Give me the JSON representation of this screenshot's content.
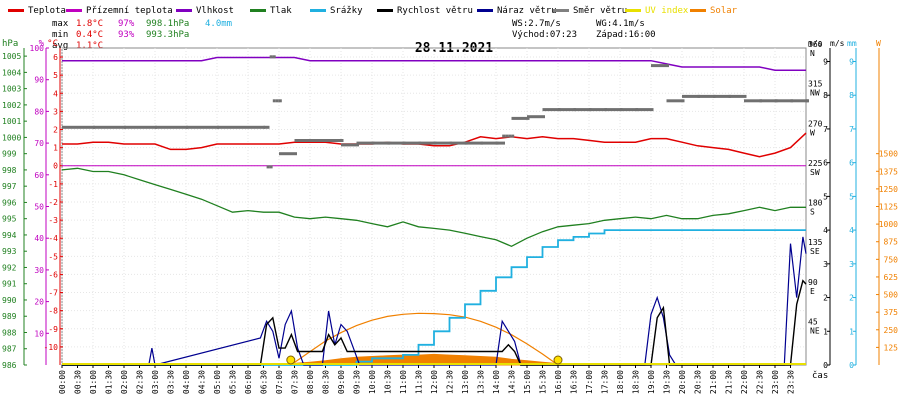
{
  "chart_data": {
    "type": "line",
    "title": "28.11.2021",
    "xlabel": "čas",
    "x_ticks": [
      "00:00",
      "00:30",
      "01:00",
      "01:30",
      "02:00",
      "02:30",
      "03:00",
      "03:30",
      "04:00",
      "04:30",
      "05:00",
      "05:30",
      "06:00",
      "06:30",
      "07:00",
      "07:30",
      "08:00",
      "08:30",
      "09:00",
      "09:30",
      "10:00",
      "10:30",
      "11:00",
      "11:30",
      "12:00",
      "12:30",
      "13:00",
      "13:30",
      "14:00",
      "14:30",
      "15:00",
      "15:30",
      "16:00",
      "16:30",
      "17:00",
      "17:30",
      "18:00",
      "18:30",
      "19:00",
      "19:30",
      "20:00",
      "20:30",
      "21:00",
      "21:30",
      "22:00",
      "22:30",
      "23:00",
      "23:30"
    ],
    "legend": [
      {
        "label": "Teplota",
        "color": "#e00000"
      },
      {
        "label": "Přízemní teplota",
        "color": "#c000c0"
      },
      {
        "label": "Vlhkost",
        "color": "#8000c0"
      },
      {
        "label": "Tlak",
        "color": "#208020"
      },
      {
        "label": "Srážky",
        "color": "#20b0e0"
      },
      {
        "label": "Rychlost větru",
        "color": "#000000"
      },
      {
        "label": "Náraz větru",
        "color": "#000090"
      },
      {
        "label": "Směr větru",
        "color": "#808080"
      },
      {
        "label": "UV index",
        "color": "#e8e000"
      },
      {
        "label": "Solar",
        "color": "#f08000"
      }
    ],
    "stats": {
      "max_label": "max",
      "min_label": "min",
      "avg_label": "avg",
      "max_temp": "1.8°C",
      "max_hum": "97%",
      "max_press": "998.1hPa",
      "max_rain": "4.0mm",
      "min_temp": "0.4°C",
      "min_hum": "93%",
      "min_press": "993.3hPa",
      "avg_temp": "1.1°C"
    },
    "info": {
      "ws": "WS:2.7m/s",
      "wg": "WG:4.1m/s",
      "sunrise": "Východ:07:23",
      "sunset": "Západ:16:00"
    },
    "axes": {
      "press": {
        "unit": "hPa",
        "color": "#208020",
        "ticks": [
          "1005",
          "1004",
          "1003",
          "1002",
          "1001",
          "1000",
          "999",
          "998",
          "997",
          "996",
          "995",
          "994",
          "993",
          "992",
          "991",
          "990",
          "989",
          "988",
          "987",
          "986"
        ],
        "range": [
          986,
          1005.5
        ]
      },
      "hum": {
        "unit": "%",
        "color": "#c000c0",
        "ticks": [
          "100",
          "90",
          "80",
          "70",
          "60",
          "50",
          "40",
          "30",
          "20",
          "10"
        ],
        "range": [
          0,
          100
        ]
      },
      "temp": {
        "unit": "°C",
        "color": "#e00000",
        "ticks": [
          "6",
          "5",
          "4",
          "3",
          "2",
          "1",
          "0",
          "-1",
          "-2",
          "-3",
          "-4",
          "-5",
          "-6",
          "-7",
          "-8",
          "-9",
          "-10"
        ],
        "range": [
          -11,
          6.5
        ]
      },
      "dir": {
        "unit": "m/s",
        "color": "#000000",
        "ticks": [
          "360",
          "315",
          "270",
          "225",
          "180",
          "135",
          "90",
          "45"
        ],
        "dir_labels": [
          "N",
          "NW",
          "W",
          "SW",
          "S",
          "SE",
          "E",
          "NE"
        ],
        "range": [
          0,
          360
        ]
      },
      "wind": {
        "unit": "m/s",
        "color": "#000000",
        "ticks": [
          "9",
          "8",
          "7",
          "6",
          "5",
          "4",
          "3",
          "2",
          "1",
          "0"
        ],
        "range": [
          0,
          9.4
        ]
      },
      "rain": {
        "unit": "mm",
        "color": "#20b0e0",
        "ticks": [
          "9",
          "8",
          "7",
          "6",
          "5",
          "4",
          "3",
          "2",
          "1",
          "0"
        ],
        "range": [
          0,
          9.4
        ]
      },
      "solar": {
        "unit": "W",
        "color": "#f08000",
        "ticks": [
          "1500",
          "1375",
          "1250",
          "1125",
          "1000",
          "875",
          "750",
          "625",
          "500",
          "375",
          "250",
          "125"
        ],
        "range": [
          0,
          2250
        ]
      }
    },
    "series": {
      "temperature": {
        "x": [
          0,
          0.5,
          1,
          1.5,
          2,
          2.5,
          3,
          3.5,
          4,
          4.5,
          5,
          5.5,
          6,
          6.5,
          7,
          7.5,
          8,
          8.5,
          9,
          9.5,
          10,
          10.5,
          11,
          11.5,
          12,
          12.5,
          13,
          13.5,
          14,
          14.5,
          15,
          15.5,
          16,
          16.5,
          17,
          17.5,
          18,
          18.5,
          19,
          19.5,
          20,
          20.5,
          21,
          21.5,
          22,
          22.5,
          23,
          23.5,
          24
        ],
        "y": [
          1.2,
          1.2,
          1.3,
          1.3,
          1.2,
          1.2,
          1.2,
          0.9,
          0.9,
          1.0,
          1.2,
          1.2,
          1.2,
          1.2,
          1.2,
          1.3,
          1.3,
          1.3,
          1.2,
          1.2,
          1.2,
          1.3,
          1.2,
          1.2,
          1.1,
          1.1,
          1.3,
          1.6,
          1.5,
          1.6,
          1.5,
          1.6,
          1.5,
          1.5,
          1.4,
          1.3,
          1.3,
          1.3,
          1.5,
          1.5,
          1.3,
          1.1,
          1.0,
          0.9,
          0.7,
          0.5,
          0.7,
          1.0,
          1.8
        ]
      },
      "humidity": {
        "x": [
          0,
          0.5,
          1,
          1.5,
          2,
          2.5,
          3,
          3.5,
          4,
          4.5,
          5,
          5.5,
          6,
          6.5,
          7,
          7.5,
          8,
          8.5,
          9,
          9.5,
          10,
          10.5,
          11,
          11.5,
          12,
          12.5,
          13,
          13.5,
          14,
          14.5,
          15,
          15.5,
          16,
          16.5,
          17,
          17.5,
          18,
          18.5,
          19,
          19.5,
          20,
          20.5,
          21,
          21.5,
          22,
          22.5,
          23,
          23.5,
          24
        ],
        "y": [
          96,
          96,
          96,
          96,
          96,
          96,
          96,
          96,
          96,
          96,
          97,
          97,
          97,
          97,
          97,
          97,
          96,
          96,
          96,
          96,
          96,
          96,
          96,
          96,
          96,
          96,
          96,
          96,
          96,
          96,
          96,
          96,
          96,
          96,
          96,
          96,
          96,
          96,
          96,
          95,
          94,
          94,
          94,
          94,
          94,
          94,
          93,
          93,
          93
        ]
      },
      "ground_temperature": {
        "x": [
          0,
          24
        ],
        "y": [
          0,
          0
        ]
      },
      "pressure": {
        "x": [
          0,
          0.5,
          1,
          1.5,
          2,
          2.5,
          3,
          3.5,
          4,
          4.5,
          5,
          5.5,
          6,
          6.5,
          7,
          7.5,
          8,
          8.5,
          9,
          9.5,
          10,
          10.5,
          11,
          11.5,
          12,
          12.5,
          13,
          13.5,
          14,
          14.5,
          15,
          15.5,
          16,
          16.5,
          17,
          17.5,
          18,
          18.5,
          19,
          19.5,
          20,
          20.5,
          21,
          21.5,
          22,
          22.5,
          23,
          23.5,
          24
        ],
        "y": [
          998.0,
          998.1,
          997.9,
          997.9,
          997.7,
          997.4,
          997.1,
          996.8,
          996.5,
          996.2,
          995.8,
          995.4,
          995.5,
          995.4,
          995.4,
          995.1,
          995.0,
          995.1,
          995.0,
          994.9,
          994.7,
          994.5,
          994.8,
          994.5,
          994.4,
          994.3,
          994.1,
          993.9,
          993.7,
          993.3,
          993.8,
          994.2,
          994.5,
          994.6,
          994.7,
          994.9,
          995.0,
          995.1,
          995.0,
          995.2,
          995.0,
          995.0,
          995.2,
          995.3,
          995.5,
          995.7,
          995.5,
          995.7,
          995.7
        ]
      },
      "precipitation": {
        "x": [
          0,
          8.5,
          9.5,
          10,
          10.5,
          11,
          11.5,
          12,
          12.5,
          13,
          13.5,
          14,
          14.5,
          15,
          15.5,
          16,
          16.5,
          17,
          17.5,
          18,
          18.5,
          19,
          19.5,
          20,
          24
        ],
        "y": [
          0,
          0,
          0.1,
          0.2,
          0.2,
          0.3,
          0.6,
          1.0,
          1.4,
          1.8,
          2.2,
          2.6,
          2.9,
          3.2,
          3.5,
          3.7,
          3.8,
          3.9,
          4.0,
          4.0,
          4.0,
          4.0,
          4.0,
          4.0,
          4.0
        ]
      },
      "wind_speed": {
        "x": [
          0,
          6.4,
          6.6,
          6.8,
          7.0,
          7.2,
          7.4,
          7.6,
          8.4,
          8.6,
          8.8,
          9.0,
          9.2,
          9.4,
          14.2,
          14.4,
          14.6,
          14.8,
          19.0,
          19.2,
          19.4,
          19.6,
          23.5,
          23.7,
          23.9,
          24
        ],
        "y": [
          0,
          0,
          1.2,
          1.4,
          0.5,
          0.5,
          0.9,
          0.4,
          0.4,
          0.9,
          0.6,
          0.8,
          0.4,
          0.4,
          0.4,
          0.6,
          0.4,
          0,
          0,
          1.4,
          1.7,
          0,
          0,
          1.8,
          2.5,
          2.4
        ]
      },
      "wind_gust": {
        "x": [
          0,
          2.8,
          2.9,
          3.0,
          6.4,
          6.6,
          6.8,
          7.0,
          7.2,
          7.4,
          7.6,
          7.8,
          8.4,
          8.6,
          8.8,
          9.0,
          9.2,
          9.4,
          9.6,
          14.0,
          14.2,
          14.4,
          14.6,
          14.8,
          18.8,
          19.0,
          19.2,
          19.4,
          19.6,
          19.8,
          23.3,
          23.5,
          23.7,
          23.9,
          24
        ],
        "y": [
          0,
          0,
          0.5,
          0,
          0.8,
          1.3,
          1.0,
          0.2,
          1.2,
          1.6,
          0.5,
          0,
          0,
          1.6,
          0.6,
          1.2,
          1.0,
          0.5,
          0,
          0,
          1.3,
          1.0,
          0.7,
          0,
          0,
          1.5,
          2.0,
          1.4,
          0.3,
          0,
          0,
          3.6,
          2.0,
          3.8,
          3.3
        ]
      },
      "wind_direction": {
        "x": [
          0,
          1,
          2,
          3,
          4,
          5,
          6.5,
          6.6,
          6.7,
          6.8,
          7,
          7.5,
          8,
          8.5,
          9,
          9.5,
          10,
          10.5,
          11,
          11.5,
          12,
          12.5,
          13,
          13.5,
          14,
          14.2,
          14.5,
          15,
          15.5,
          16,
          16.5,
          17,
          17.5,
          18,
          18.5,
          19,
          19.5,
          20,
          20.5,
          21,
          21.5,
          22,
          22.5,
          23,
          23.5,
          24
        ],
        "y": [
          270,
          270,
          270,
          270,
          270,
          270,
          270,
          225,
          350,
          300,
          240,
          255,
          255,
          255,
          250,
          252,
          252,
          252,
          252,
          252,
          252,
          252,
          252,
          252,
          252,
          260,
          280,
          282,
          290,
          290,
          290,
          290,
          290,
          290,
          290,
          340,
          300,
          305,
          305,
          305,
          305,
          300,
          300,
          300,
          300,
          300
        ]
      },
      "solar": {
        "x": [
          7.4,
          8,
          8.5,
          9,
          9.5,
          10,
          10.5,
          11,
          11.5,
          12,
          12.5,
          13,
          13.5,
          14,
          14.5,
          15,
          15.5,
          16
        ],
        "y": [
          10,
          20,
          30,
          45,
          55,
          60,
          65,
          70,
          70,
          75,
          70,
          65,
          60,
          55,
          40,
          30,
          20,
          10
        ]
      },
      "clear_sky_solar": {
        "x": [
          7.38,
          8,
          8.5,
          9,
          9.5,
          10,
          10.5,
          11,
          11.5,
          12,
          12.5,
          13,
          13.5,
          14,
          14.5,
          15,
          15.5,
          16
        ],
        "y": [
          0,
          95,
          170,
          230,
          280,
          318,
          345,
          360,
          367,
          365,
          357,
          340,
          310,
          268,
          215,
          150,
          78,
          0
        ]
      },
      "sun_events": {
        "x": [
          7.38,
          16.0
        ],
        "y": [
          0,
          0
        ]
      }
    }
  }
}
